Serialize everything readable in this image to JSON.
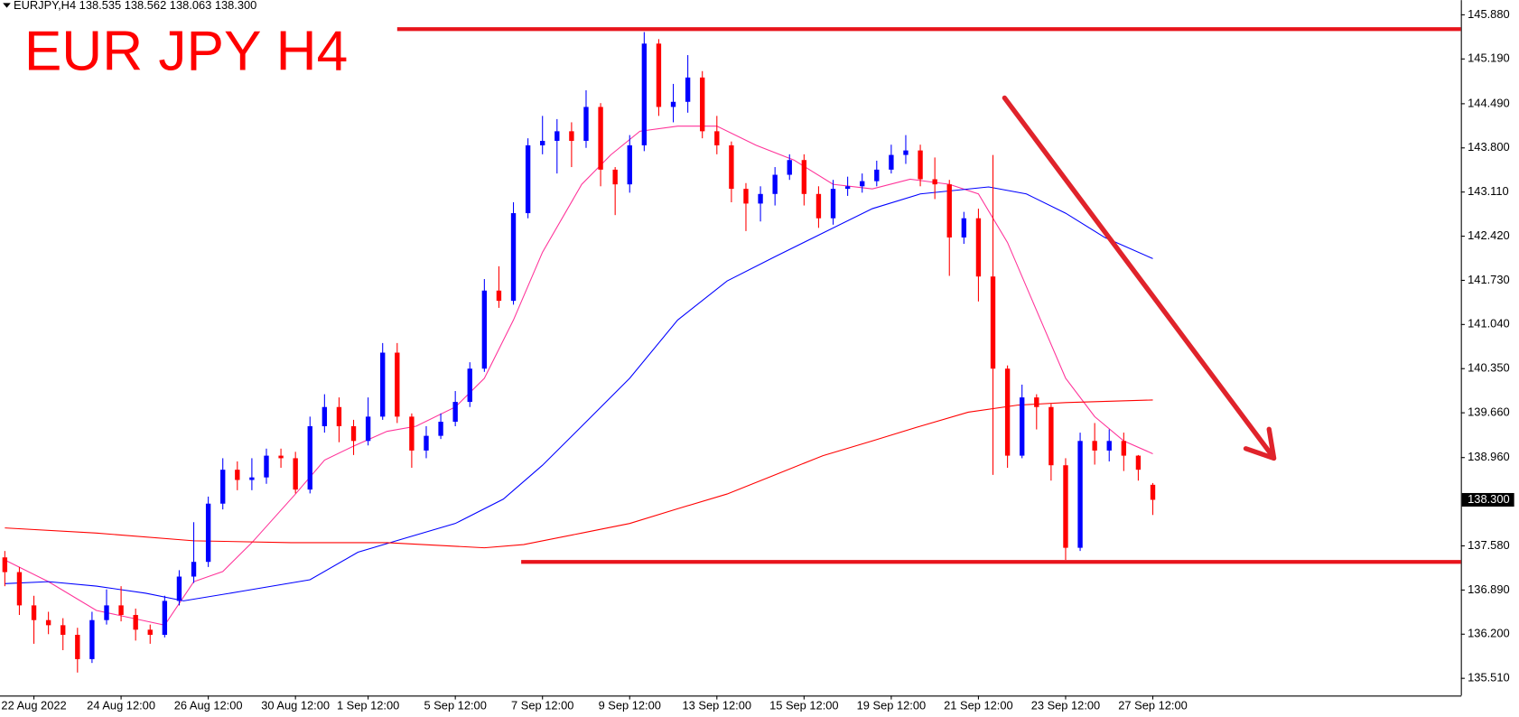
{
  "chart_data": {
    "type": "candlestick",
    "header": "EURJPY,H4  138.535 138.562 138.063 138.300",
    "title": "EUR JPY H4",
    "up_color": "#0000ff",
    "down_color": "#ff0000",
    "categories": [
      null,
      null,
      "22 Aug 2022",
      null,
      null,
      null,
      null,
      null,
      "24 Aug 12:00",
      null,
      null,
      null,
      null,
      null,
      "26 Aug 12:00",
      null,
      null,
      null,
      null,
      null,
      "30 Aug 12:00",
      null,
      null,
      null,
      null,
      "1 Sep 12:00",
      null,
      null,
      null,
      null,
      null,
      "5 Sep 12:00",
      null,
      null,
      null,
      null,
      null,
      "7 Sep 12:00",
      null,
      null,
      null,
      null,
      null,
      "9 Sep 12:00",
      null,
      null,
      null,
      null,
      null,
      "13 Sep 12:00",
      null,
      null,
      null,
      null,
      null,
      "15 Sep 12:00",
      null,
      null,
      null,
      null,
      null,
      "19 Sep 12:00",
      null,
      null,
      null,
      null,
      null,
      "21 Sep 12:00",
      null,
      null,
      null,
      null,
      null,
      "23 Sep 12:00",
      null,
      null,
      null,
      null,
      null,
      "27 Sep 12:00"
    ],
    "open": [
      137.4,
      137.17,
      136.65,
      136.42,
      136.34,
      136.19,
      135.81,
      136.42,
      136.65,
      136.5,
      136.27,
      136.19,
      136.72,
      137.1,
      137.33,
      138.24,
      138.77,
      138.61,
      138.65,
      138.99,
      138.95,
      138.46,
      139.45,
      139.75,
      139.45,
      139.22,
      139.6,
      140.6,
      139.6,
      139.07,
      139.3,
      139.52,
      139.83,
      140.35,
      141.57,
      141.41,
      142.78,
      143.84,
      143.91,
      144.06,
      143.91,
      144.44,
      143.46,
      143.23,
      143.84,
      145.43,
      144.44,
      144.52,
      144.9,
      144.06,
      143.84,
      143.16,
      142.93,
      143.08,
      143.38,
      143.61,
      143.08,
      142.7,
      143.16,
      143.2,
      143.28,
      143.46,
      143.69,
      143.76,
      143.31,
      143.23,
      142.4,
      142.7,
      141.79,
      140.35,
      138.99,
      139.9,
      139.75,
      138.84,
      137.55,
      139.22,
      139.07,
      139.22,
      138.99,
      138.535
    ],
    "high": [
      137.5,
      137.25,
      136.8,
      136.55,
      136.45,
      136.3,
      136.55,
      136.9,
      136.95,
      136.6,
      136.35,
      136.8,
      137.2,
      137.95,
      138.35,
      138.95,
      138.9,
      138.95,
      139.1,
      139.1,
      139.05,
      139.6,
      139.95,
      139.9,
      139.55,
      139.9,
      140.75,
      140.75,
      139.65,
      139.45,
      139.65,
      140.0,
      140.45,
      141.75,
      141.95,
      142.95,
      143.95,
      144.3,
      144.25,
      144.2,
      144.7,
      144.5,
      143.5,
      144.0,
      145.61,
      145.5,
      144.8,
      145.25,
      145.0,
      144.3,
      143.9,
      143.25,
      143.2,
      143.5,
      143.7,
      143.7,
      143.2,
      143.3,
      143.35,
      143.4,
      143.6,
      143.85,
      144.0,
      143.85,
      143.65,
      143.3,
      142.8,
      142.85,
      143.69,
      140.4,
      140.1,
      139.95,
      139.8,
      138.95,
      139.35,
      139.5,
      139.4,
      139.35,
      139.0,
      138.562
    ],
    "low": [
      136.95,
      136.5,
      136.05,
      136.2,
      135.95,
      135.6,
      135.75,
      136.35,
      136.4,
      136.1,
      136.05,
      136.15,
      136.65,
      137.0,
      137.25,
      138.15,
      138.45,
      138.45,
      138.55,
      138.8,
      138.4,
      138.4,
      139.35,
      139.2,
      139.0,
      139.15,
      139.55,
      139.5,
      138.8,
      138.95,
      139.25,
      139.45,
      139.75,
      140.3,
      141.3,
      141.35,
      142.7,
      143.7,
      143.4,
      143.5,
      143.8,
      143.2,
      142.75,
      143.1,
      143.75,
      144.3,
      144.2,
      144.35,
      143.95,
      143.7,
      142.95,
      142.5,
      142.65,
      142.9,
      143.3,
      142.9,
      142.55,
      142.6,
      143.05,
      143.1,
      143.2,
      143.4,
      143.55,
      143.2,
      143.0,
      141.8,
      142.3,
      141.4,
      138.69,
      138.8,
      138.95,
      139.4,
      138.6,
      137.36,
      137.5,
      138.85,
      138.9,
      138.75,
      138.6,
      138.063
    ],
    "close": [
      137.17,
      136.65,
      136.42,
      136.34,
      136.19,
      135.81,
      136.42,
      136.65,
      136.5,
      136.27,
      136.19,
      136.72,
      137.1,
      137.33,
      138.24,
      138.77,
      138.61,
      138.65,
      138.99,
      138.95,
      138.46,
      139.45,
      139.75,
      139.45,
      139.22,
      139.6,
      140.6,
      139.6,
      139.07,
      139.3,
      139.52,
      139.83,
      140.35,
      141.57,
      141.41,
      142.78,
      143.84,
      143.91,
      144.06,
      143.91,
      144.44,
      143.46,
      143.23,
      143.84,
      145.43,
      144.44,
      144.52,
      144.9,
      144.06,
      143.84,
      143.16,
      142.93,
      143.08,
      143.38,
      143.61,
      143.08,
      142.7,
      143.16,
      143.2,
      143.28,
      143.46,
      143.69,
      143.76,
      143.31,
      143.23,
      142.4,
      142.7,
      141.79,
      140.35,
      138.99,
      139.9,
      139.75,
      138.84,
      137.55,
      139.22,
      139.07,
      139.22,
      138.99,
      138.77,
      138.3
    ],
    "series": [
      {
        "color": "#ff3399",
        "x": [
          0,
          3,
          6.3,
          11,
          13,
          15,
          17,
          20,
          22,
          24,
          26.3,
          28.3,
          31,
          33,
          35,
          37,
          39.7,
          41.7,
          43.7,
          46.3,
          49,
          51.7,
          54.3,
          57,
          59.7,
          62.3,
          65,
          67,
          69,
          71,
          73,
          75,
          77,
          79
        ],
        "values": [
          137.36,
          137.02,
          136.57,
          136.34,
          137.02,
          137.18,
          137.63,
          138.39,
          138.92,
          139.14,
          139.37,
          139.45,
          139.75,
          140.2,
          141.11,
          142.17,
          143.23,
          143.69,
          144.06,
          144.14,
          144.14,
          143.84,
          143.61,
          143.23,
          143.16,
          143.31,
          143.23,
          143.08,
          142.32,
          141.26,
          140.2,
          139.6,
          139.22,
          139.02
        ]
      },
      {
        "color": "#0000ff",
        "x": [
          0,
          3,
          6.3,
          9.7,
          12.3,
          16.3,
          21,
          24.3,
          27.7,
          31,
          34.3,
          37,
          39.7,
          43,
          46.3,
          49.7,
          53,
          56.3,
          59.7,
          63,
          67.7,
          70.3,
          73,
          75.7,
          79
        ],
        "values": [
          136.99,
          137.02,
          136.95,
          136.84,
          136.72,
          136.87,
          137.05,
          137.48,
          137.71,
          137.93,
          138.31,
          138.84,
          139.45,
          140.2,
          141.11,
          141.72,
          142.1,
          142.47,
          142.85,
          143.08,
          143.19,
          143.08,
          142.78,
          142.4,
          142.07
        ]
      },
      {
        "color": "#ff0000",
        "x": [
          0,
          6.3,
          13,
          19.7,
          26.3,
          33,
          35.7,
          39.7,
          43,
          46.3,
          49.7,
          53,
          56.3,
          59.7,
          63,
          66.3,
          69.7,
          73,
          79
        ],
        "values": [
          137.86,
          137.78,
          137.66,
          137.63,
          137.63,
          137.55,
          137.6,
          137.78,
          137.93,
          138.16,
          138.39,
          138.69,
          138.99,
          139.22,
          139.45,
          139.67,
          139.78,
          139.82,
          139.86
        ]
      }
    ],
    "last_price": {
      "value": 138.3,
      "label": "138.300"
    },
    "xlim": [
      -0.333,
      100.2
    ],
    "ylim": [
      135.24,
      146.11
    ],
    "yticks": [
      {
        "value": 145.88,
        "label": "145.880"
      },
      {
        "value": 145.19,
        "label": "145.190"
      },
      {
        "value": 144.49,
        "label": "144.490"
      },
      {
        "value": 143.8,
        "label": "143.800"
      },
      {
        "value": 143.11,
        "label": "143.110"
      },
      {
        "value": 142.42,
        "label": "142.420"
      },
      {
        "value": 141.73,
        "label": "141.730"
      },
      {
        "value": 141.04,
        "label": "141.040"
      },
      {
        "value": 140.35,
        "label": "140.350"
      },
      {
        "value": 139.66,
        "label": "139.660"
      },
      {
        "value": 138.96,
        "label": "138.960"
      },
      {
        "value": 137.58,
        "label": "137.580"
      },
      {
        "value": 136.89,
        "label": "136.890"
      },
      {
        "value": 136.2,
        "label": "136.200"
      },
      {
        "value": 135.51,
        "label": "135.510"
      }
    ]
  }
}
